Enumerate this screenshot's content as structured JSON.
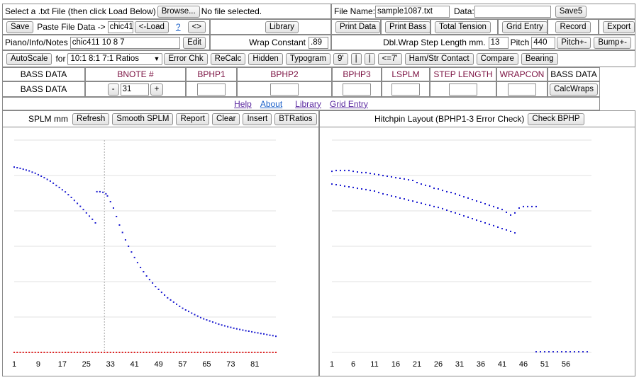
{
  "row1": {
    "select_label": "Select a .txt File (then click Load Below)",
    "browse_label": "Browse...",
    "file_status": "No file selected.",
    "filename_label": "File Name:",
    "filename_value": "sample1087.txt",
    "data_label": "Data:",
    "data_value": "",
    "save5_label": "Save5"
  },
  "row2": {
    "save_label": "Save",
    "paste_label": "Paste File Data ->",
    "paste_value": "chic41:",
    "load_label": "<-Load",
    "help_q": "?",
    "swap_label": "<>",
    "library_label": "Library",
    "print_data_label": "Print Data",
    "print_bass_label": "Print Bass",
    "total_tension_label": "Total Tension",
    "grid_entry_label": "Grid Entry",
    "record_label": "Record",
    "export_label": "Export"
  },
  "row3": {
    "notes_label": "Piano/Info/Notes",
    "notes_value": "chic411 10 8 7",
    "edit_label": "Edit",
    "wrap_constant_label": "Wrap Constant",
    "wrap_constant_value": ".89",
    "dbl_wrap_label": "Dbl.Wrap Step Length mm.",
    "dbl_wrap_value": "13",
    "pitch_label": "Pitch",
    "pitch_value": "440",
    "pitch_pm_label": "Pitch+-",
    "bump_pm_label": "Bump+-"
  },
  "row4": {
    "autoscale_label": "AutoScale",
    "for_label": "for",
    "ratio_selected": "10:1 8:1 7:1 Ratios",
    "error_chk_label": "Error Chk",
    "recalc_label": "ReCalc",
    "hidden_label": "Hidden",
    "typogram_label": "Typogram",
    "nine_label": "9'",
    "bar1_label": "|",
    "bar2_label": "|",
    "le7_label": "<=7'",
    "ham_label": "Ham/Str Contact",
    "compare_label": "Compare",
    "bearing_label": "Bearing"
  },
  "bass_table": {
    "headers": [
      "BASS DATA",
      "BNOTE #",
      "BPHP1",
      "BPHP2",
      "BPHP3",
      "LSPLM",
      "STEP LENGTH",
      "WRAPCON",
      "BASS DATA"
    ],
    "row_label": "BASS DATA",
    "minus_label": "-",
    "bnote_value": "31",
    "plus_label": "+",
    "calcwraps_label": "CalcWraps"
  },
  "links": [
    "Help",
    "About",
    "Library",
    "Grid Entry"
  ],
  "left_panel": {
    "title": "SPLM mm",
    "buttons": [
      "Refresh",
      "Smooth SPLM",
      "Report",
      "Clear",
      "Insert",
      "BTRatios"
    ]
  },
  "right_panel": {
    "title": "Hitchpin Layout (BPHP1-3 Error Check)",
    "check_label": "Check BPHP"
  },
  "chart_data": [
    {
      "type": "scatter",
      "title": "SPLM mm",
      "x_ticks": [
        1,
        9,
        17,
        25,
        33,
        41,
        49,
        57,
        65,
        73,
        81
      ],
      "xlim": [
        1,
        88
      ],
      "ylim": [
        0,
        100
      ],
      "grid": true,
      "marker_line_x": 31,
      "colors": {
        "main": "#1a1ad0",
        "baseline": "#e02020"
      },
      "series": [
        {
          "points": [
            [
              1,
              87.3
            ],
            [
              2,
              87.0
            ],
            [
              3,
              86.7
            ],
            [
              4,
              86.3
            ],
            [
              5,
              85.9
            ],
            [
              6,
              85.5
            ],
            [
              7,
              84.9
            ],
            [
              8,
              84.4
            ],
            [
              9,
              83.7
            ],
            [
              10,
              83.0
            ],
            [
              11,
              82.3
            ],
            [
              12,
              81.5
            ],
            [
              13,
              80.7
            ],
            [
              14,
              79.7
            ],
            [
              15,
              78.6
            ],
            [
              16,
              77.7
            ],
            [
              17,
              76.6
            ],
            [
              18,
              75.6
            ],
            [
              19,
              74.3
            ],
            [
              20,
              73.0
            ],
            [
              21,
              71.6
            ],
            [
              22,
              70.2
            ],
            [
              23,
              68.8
            ],
            [
              24,
              67.3
            ],
            [
              25,
              65.7
            ],
            [
              26,
              64.2
            ],
            [
              27,
              62.7
            ],
            [
              28,
              61.0
            ],
            [
              28.5,
              75.7
            ],
            [
              29.5,
              75.7
            ],
            [
              30.5,
              75.4
            ],
            [
              31.5,
              74.7
            ],
            [
              32,
              73.7
            ],
            [
              33,
              71.0
            ],
            [
              34,
              68.0
            ],
            [
              35,
              64.0
            ],
            [
              36,
              60.0
            ],
            [
              37,
              56.5
            ],
            [
              38,
              53.0
            ],
            [
              39,
              50.0
            ],
            [
              40,
              47.3
            ],
            [
              41,
              44.7
            ],
            [
              42,
              42.3
            ],
            [
              43,
              40.0
            ],
            [
              44,
              38.0
            ],
            [
              45,
              36.0
            ],
            [
              46,
              34.3
            ],
            [
              47,
              32.7
            ],
            [
              48,
              31.0
            ],
            [
              49,
              29.7
            ],
            [
              50,
              28.3
            ],
            [
              51,
              27.0
            ],
            [
              52,
              25.7
            ],
            [
              53,
              24.7
            ],
            [
              54,
              23.7
            ],
            [
              55,
              22.7
            ],
            [
              56,
              21.7
            ],
            [
              57,
              20.8
            ],
            [
              58,
              20.0
            ],
            [
              59,
              19.3
            ],
            [
              60,
              18.5
            ],
            [
              61,
              17.8
            ],
            [
              62,
              17.1
            ],
            [
              63,
              16.4
            ],
            [
              64,
              15.8
            ],
            [
              65,
              15.3
            ],
            [
              66,
              14.8
            ],
            [
              67,
              14.3
            ],
            [
              68,
              13.8
            ],
            [
              69,
              13.3
            ],
            [
              70,
              12.9
            ],
            [
              71,
              12.5
            ],
            [
              72,
              12.1
            ],
            [
              73,
              11.8
            ],
            [
              74,
              11.4
            ],
            [
              75,
              11.1
            ],
            [
              76,
              10.8
            ],
            [
              77,
              10.5
            ],
            [
              78,
              10.2
            ],
            [
              79,
              10.0
            ],
            [
              80,
              9.7
            ],
            [
              81,
              9.4
            ],
            [
              82,
              9.2
            ],
            [
              83,
              8.9
            ],
            [
              84,
              8.7
            ],
            [
              85,
              8.4
            ],
            [
              86,
              8.1
            ],
            [
              87,
              7.9
            ],
            [
              88,
              7.6
            ]
          ]
        },
        {
          "name_hidden": true,
          "baseline_y": 0,
          "points_from": 1,
          "points_to": 88
        }
      ]
    },
    {
      "type": "scatter",
      "title": "Hitchpin Layout (BPHP1-3 Error Check)",
      "x_ticks": [
        1,
        6,
        11,
        16,
        21,
        26,
        31,
        36,
        41,
        46,
        51,
        56
      ],
      "xlim": [
        1,
        62
      ],
      "ylim": [
        0,
        100
      ],
      "grid": true,
      "colors": {
        "main": "#1a1ad0"
      },
      "series": [
        {
          "points": [
            [
              1,
              85.3
            ],
            [
              2,
              85.7
            ],
            [
              3,
              85.7
            ],
            [
              4,
              85.7
            ],
            [
              5,
              85.7
            ],
            [
              6,
              85.3
            ],
            [
              7,
              85.0
            ],
            [
              8,
              84.7
            ],
            [
              9,
              84.7
            ],
            [
              10,
              84.3
            ],
            [
              11,
              84.0
            ],
            [
              12,
              83.7
            ],
            [
              13,
              83.3
            ],
            [
              14,
              83.0
            ],
            [
              15,
              82.7
            ],
            [
              16,
              82.3
            ],
            [
              17,
              82.0
            ],
            [
              18,
              81.7
            ],
            [
              19,
              81.3
            ],
            [
              20,
              81.0
            ],
            [
              21,
              80.0
            ],
            [
              22,
              79.3
            ],
            [
              23,
              78.7
            ],
            [
              24,
              78.3
            ],
            [
              25,
              77.3
            ],
            [
              26,
              77.0
            ],
            [
              27,
              76.3
            ],
            [
              28,
              75.7
            ],
            [
              29,
              75.3
            ],
            [
              30,
              74.7
            ],
            [
              31,
              74.0
            ],
            [
              32,
              73.3
            ],
            [
              33,
              72.7
            ],
            [
              34,
              72.0
            ],
            [
              35,
              71.3
            ],
            [
              36,
              70.7
            ],
            [
              37,
              70.0
            ],
            [
              38,
              69.3
            ],
            [
              39,
              68.7
            ],
            [
              40,
              68.0
            ],
            [
              41,
              67.3
            ],
            [
              42,
              66.0
            ],
            [
              43,
              64.7
            ],
            [
              44,
              65.7
            ],
            [
              45,
              68.0
            ],
            [
              46,
              68.7
            ],
            [
              47,
              68.7
            ],
            [
              48,
              68.7
            ],
            [
              49,
              68.7
            ]
          ]
        },
        {
          "points": [
            [
              1,
              79.3
            ],
            [
              2,
              79.0
            ],
            [
              3,
              78.7
            ],
            [
              4,
              78.3
            ],
            [
              5,
              78.0
            ],
            [
              6,
              77.7
            ],
            [
              7,
              77.3
            ],
            [
              8,
              77.0
            ],
            [
              9,
              76.7
            ],
            [
              10,
              76.3
            ],
            [
              11,
              76.0
            ],
            [
              12,
              75.3
            ],
            [
              13,
              74.7
            ],
            [
              14,
              74.3
            ],
            [
              15,
              73.7
            ],
            [
              16,
              73.3
            ],
            [
              17,
              72.7
            ],
            [
              18,
              72.3
            ],
            [
              19,
              71.7
            ],
            [
              20,
              71.3
            ],
            [
              21,
              70.7
            ],
            [
              22,
              70.3
            ],
            [
              23,
              69.7
            ],
            [
              24,
              69.3
            ],
            [
              25,
              68.7
            ],
            [
              26,
              68.3
            ],
            [
              27,
              67.7
            ],
            [
              28,
              67.0
            ],
            [
              29,
              66.3
            ],
            [
              30,
              65.7
            ],
            [
              31,
              65.0
            ],
            [
              32,
              64.3
            ],
            [
              33,
              63.7
            ],
            [
              34,
              63.0
            ],
            [
              35,
              62.3
            ],
            [
              36,
              61.7
            ],
            [
              37,
              61.0
            ],
            [
              38,
              60.3
            ],
            [
              39,
              59.7
            ],
            [
              40,
              59.0
            ],
            [
              41,
              58.3
            ],
            [
              42,
              57.7
            ],
            [
              43,
              57.0
            ],
            [
              44,
              56.3
            ]
          ]
        },
        {
          "points": [
            [
              49,
              0.3
            ],
            [
              50,
              0.3
            ],
            [
              51,
              0.3
            ],
            [
              52,
              0.3
            ],
            [
              53,
              0.3
            ],
            [
              54,
              0.3
            ],
            [
              55,
              0.3
            ],
            [
              56,
              0.3
            ],
            [
              57,
              0.3
            ],
            [
              58,
              0.3
            ],
            [
              59,
              0.3
            ],
            [
              60,
              0.3
            ],
            [
              61,
              0.3
            ]
          ]
        }
      ]
    }
  ]
}
